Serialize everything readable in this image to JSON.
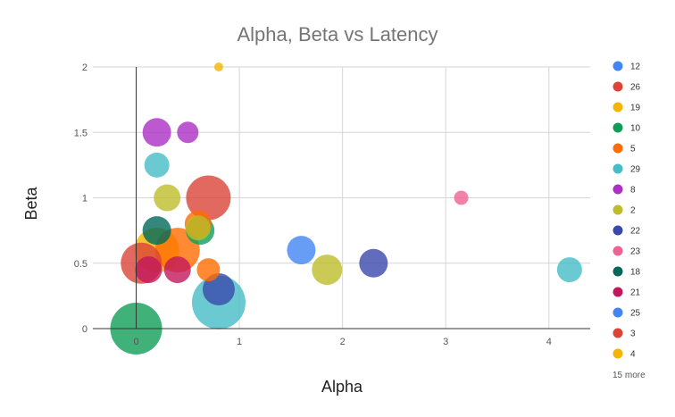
{
  "chart_data": {
    "type": "bubble",
    "title": "Alpha, Beta vs Latency",
    "xlabel": "Alpha",
    "ylabel": "Beta",
    "xlim": [
      -0.42,
      4.4
    ],
    "ylim": [
      0,
      2
    ],
    "xticks": [
      0,
      1,
      2,
      3,
      4
    ],
    "yticks": [
      0,
      0.5,
      1,
      1.5,
      2
    ],
    "grid": true,
    "legend_position": "right",
    "legend_more": "15 more",
    "legend": [
      {
        "label": "12",
        "color": "#4285F4"
      },
      {
        "label": "26",
        "color": "#DB4437"
      },
      {
        "label": "19",
        "color": "#F4B400"
      },
      {
        "label": "10",
        "color": "#0F9D58"
      },
      {
        "label": "5",
        "color": "#FF6D00"
      },
      {
        "label": "29",
        "color": "#46BDC6"
      },
      {
        "label": "8",
        "color": "#AB30C4"
      },
      {
        "label": "2",
        "color": "#BDBD2A"
      },
      {
        "label": "22",
        "color": "#3949AB"
      },
      {
        "label": "23",
        "color": "#F06292"
      },
      {
        "label": "18",
        "color": "#00695C"
      },
      {
        "label": "21",
        "color": "#C2185B"
      },
      {
        "label": "25",
        "color": "#4285F4"
      },
      {
        "label": "3",
        "color": "#DB4437"
      },
      {
        "label": "4",
        "color": "#F4B400"
      }
    ],
    "points": [
      {
        "x": 0.0,
        "y": 0.0,
        "size": 29,
        "color": "#0F9D58"
      },
      {
        "x": 0.8,
        "y": 2.0,
        "size": 5,
        "color": "#F4B400"
      },
      {
        "x": 0.2,
        "y": 1.5,
        "size": 16,
        "color": "#AB30C4"
      },
      {
        "x": 0.5,
        "y": 1.5,
        "size": 12,
        "color": "#AB30C4"
      },
      {
        "x": 0.2,
        "y": 1.25,
        "size": 14,
        "color": "#46BDC6"
      },
      {
        "x": 0.7,
        "y": 1.0,
        "size": 25,
        "color": "#DB4437"
      },
      {
        "x": 0.3,
        "y": 1.0,
        "size": 15,
        "color": "#BDBD2A"
      },
      {
        "x": 3.15,
        "y": 1.0,
        "size": 8,
        "color": "#F06292"
      },
      {
        "x": 0.6,
        "y": 0.8,
        "size": 15,
        "color": "#FF6D00"
      },
      {
        "x": 0.2,
        "y": 0.75,
        "size": 16,
        "color": "#00695C"
      },
      {
        "x": 0.62,
        "y": 0.75,
        "size": 16,
        "color": "#0F9D58"
      },
      {
        "x": 0.6,
        "y": 0.77,
        "size": 14,
        "color": "#BDBD2A"
      },
      {
        "x": 0.05,
        "y": 0.5,
        "size": 23,
        "color": "#DB4437"
      },
      {
        "x": 0.12,
        "y": 0.45,
        "size": 15,
        "color": "#C2185B"
      },
      {
        "x": 0.4,
        "y": 0.45,
        "size": 15,
        "color": "#C2185B"
      },
      {
        "x": 0.2,
        "y": 0.6,
        "size": 25,
        "color": "#F4B400"
      },
      {
        "x": 0.4,
        "y": 0.6,
        "size": 25,
        "color": "#FF6D00"
      },
      {
        "x": 0.7,
        "y": 0.45,
        "size": 13,
        "color": "#FF6D00"
      },
      {
        "x": 0.8,
        "y": 0.3,
        "size": 18,
        "color": "#3949AB"
      },
      {
        "x": 0.8,
        "y": 0.2,
        "size": 30,
        "color": "#46BDC6"
      },
      {
        "x": 1.6,
        "y": 0.6,
        "size": 16,
        "color": "#4285F4"
      },
      {
        "x": 1.85,
        "y": 0.45,
        "size": 17,
        "color": "#BDBD2A"
      },
      {
        "x": 2.3,
        "y": 0.5,
        "size": 16,
        "color": "#3949AB"
      },
      {
        "x": 4.2,
        "y": 0.45,
        "size": 14,
        "color": "#46BDC6"
      }
    ]
  }
}
